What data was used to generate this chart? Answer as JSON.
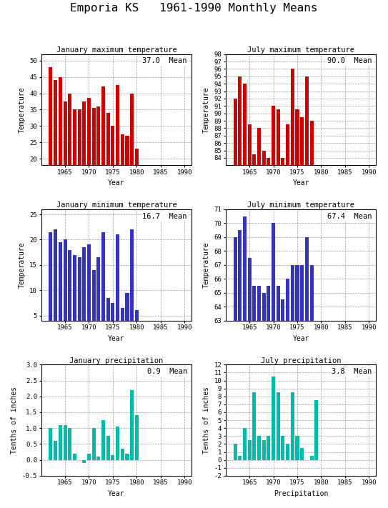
{
  "title": "Emporia KS   1961-1990 Monthly Means",
  "jan_max_years": [
    1962,
    1963,
    1964,
    1965,
    1966,
    1967,
    1968,
    1969,
    1970,
    1971,
    1972,
    1973,
    1974,
    1975,
    1976,
    1977,
    1978,
    1979,
    1980
  ],
  "jan_max": [
    48.0,
    44.0,
    45.0,
    37.5,
    40.0,
    35.0,
    35.0,
    37.5,
    38.5,
    35.5,
    36.0,
    42.0,
    34.0,
    30.0,
    42.5,
    27.5,
    27.0,
    40.0,
    23.0
  ],
  "jul_max_years": [
    1962,
    1963,
    1964,
    1965,
    1966,
    1967,
    1968,
    1969,
    1970,
    1971,
    1972,
    1973,
    1974,
    1975,
    1976,
    1977,
    1978
  ],
  "jul_max": [
    92.0,
    95.0,
    94.0,
    88.5,
    84.5,
    88.0,
    85.0,
    84.0,
    91.0,
    90.5,
    84.0,
    88.5,
    96.0,
    90.5,
    89.5,
    95.0,
    89.0
  ],
  "jan_min_years": [
    1962,
    1963,
    1964,
    1965,
    1966,
    1967,
    1968,
    1969,
    1970,
    1971,
    1972,
    1973,
    1974,
    1975,
    1976,
    1977,
    1978,
    1979,
    1980
  ],
  "jan_min": [
    21.5,
    22.0,
    19.5,
    20.0,
    18.0,
    17.0,
    16.5,
    18.5,
    19.0,
    14.0,
    16.5,
    21.5,
    8.5,
    7.5,
    21.0,
    6.5,
    9.5,
    22.0,
    6.0
  ],
  "jul_min_years": [
    1962,
    1963,
    1964,
    1965,
    1966,
    1967,
    1968,
    1969,
    1970,
    1971,
    1972,
    1973,
    1974,
    1975,
    1976,
    1977,
    1978
  ],
  "jul_min": [
    69.0,
    69.5,
    70.5,
    67.5,
    65.5,
    65.5,
    65.0,
    65.5,
    70.0,
    65.5,
    64.5,
    66.0,
    67.0,
    67.0,
    67.0,
    69.0,
    67.0
  ],
  "jan_prec_years": [
    1962,
    1963,
    1964,
    1965,
    1966,
    1967,
    1968,
    1969,
    1970,
    1971,
    1972,
    1973,
    1974,
    1975,
    1976,
    1977,
    1978,
    1979,
    1980
  ],
  "jan_prec": [
    1.0,
    0.6,
    1.1,
    1.1,
    1.0,
    0.2,
    0.0,
    -0.1,
    0.2,
    1.0,
    0.1,
    1.25,
    0.75,
    0.15,
    1.05,
    0.35,
    0.2,
    2.2,
    1.4
  ],
  "jul_prec_years": [
    1962,
    1963,
    1964,
    1965,
    1966,
    1967,
    1968,
    1969,
    1970,
    1971,
    1972,
    1973,
    1974,
    1975,
    1976,
    1977,
    1978,
    1979
  ],
  "jul_prec": [
    2.0,
    0.5,
    4.0,
    2.5,
    8.5,
    3.0,
    2.5,
    3.0,
    10.5,
    8.5,
    3.0,
    2.0,
    8.5,
    3.0,
    1.5,
    0.0,
    0.5,
    7.5
  ],
  "jan_max_mean": 37.0,
  "jul_max_mean": 90.0,
  "jan_min_mean": 16.7,
  "jul_min_mean": 67.4,
  "jan_prec_mean": 0.9,
  "jul_prec_mean": 3.8,
  "bar_color_red": "#cc0000",
  "bar_color_blue": "#3333bb",
  "bar_color_teal": "#00bbaa",
  "bg_color": "#ffffff",
  "grid_color": "#888888"
}
